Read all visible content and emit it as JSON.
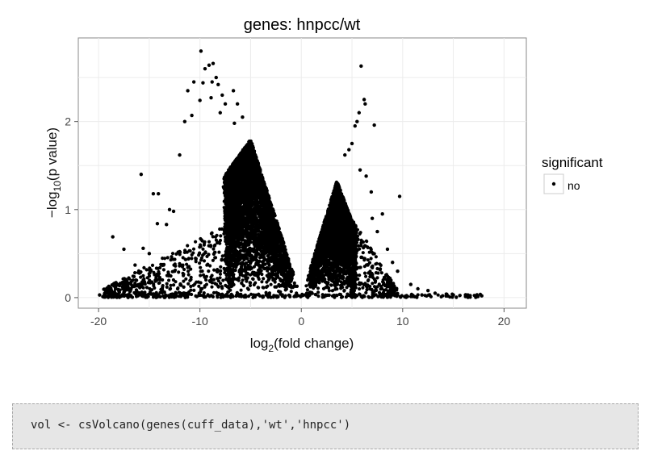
{
  "chart_data": {
    "type": "scatter",
    "title": "genes: hnpcc/wt",
    "xlabel": {
      "pre": "log",
      "sub": "2",
      "post": "(fold change)"
    },
    "ylabel": {
      "pre": "−log",
      "sub": "10",
      "post": "(p value)"
    },
    "xlim": [
      -22,
      22.2
    ],
    "ylim": [
      -0.12,
      2.95
    ],
    "xticks": [
      -20,
      -10,
      0,
      10,
      20
    ],
    "xtick_labels": [
      "-20",
      "-10",
      "0",
      "10",
      "20"
    ],
    "yticks": [
      0,
      1,
      2
    ],
    "ytick_labels": [
      "0",
      "1",
      "2"
    ],
    "grid": true,
    "point_color": "#000000",
    "legend": {
      "title": "significant",
      "entries": [
        "no"
      ],
      "position": "right"
    },
    "series": [
      {
        "points": [
          [
            -9.9,
            2.8
          ],
          [
            -8.7,
            2.66
          ],
          [
            -9.5,
            2.6
          ],
          [
            -9.1,
            2.64
          ],
          [
            -8.8,
            2.45
          ],
          [
            -8.4,
            2.5
          ],
          [
            -8.2,
            2.42
          ],
          [
            -10.6,
            2.45
          ],
          [
            -11.2,
            2.35
          ],
          [
            -9.7,
            2.44
          ],
          [
            -7.8,
            2.3
          ],
          [
            -6.7,
            2.35
          ],
          [
            -7.5,
            2.2
          ],
          [
            -8.0,
            2.1
          ],
          [
            -10.0,
            2.24
          ],
          [
            -11.5,
            2.0
          ],
          [
            -10.8,
            2.07
          ],
          [
            -8.9,
            2.27
          ],
          [
            -6.3,
            2.2
          ],
          [
            -5.8,
            2.05
          ],
          [
            -6.6,
            1.98
          ],
          [
            -12.0,
            1.62
          ],
          [
            -15.8,
            1.4
          ],
          [
            -14.6,
            1.18
          ],
          [
            -14.1,
            1.18
          ],
          [
            -13.0,
            1.0
          ],
          [
            -12.6,
            0.98
          ],
          [
            -13.3,
            0.83
          ],
          [
            -14.2,
            0.84
          ],
          [
            -18.6,
            0.69
          ],
          [
            -17.5,
            0.55
          ],
          [
            -15.6,
            0.56
          ],
          [
            -15.0,
            0.5
          ],
          [
            -16.4,
            0.37
          ],
          [
            -17.0,
            0.16
          ],
          [
            -19.3,
            0.08
          ],
          [
            -19.9,
            0.03
          ],
          [
            -18.2,
            0.02
          ],
          [
            -17.5,
            0.06
          ],
          [
            -16.0,
            0.05
          ],
          [
            -14.8,
            0.04
          ],
          [
            -13.5,
            0.06
          ],
          [
            -12.2,
            0.1
          ],
          [
            -11.6,
            0.12
          ],
          [
            5.9,
            2.63
          ],
          [
            6.2,
            2.25
          ],
          [
            6.3,
            2.2
          ],
          [
            5.7,
            2.1
          ],
          [
            5.5,
            2.0
          ],
          [
            5.3,
            1.95
          ],
          [
            7.2,
            1.96
          ],
          [
            5.0,
            1.75
          ],
          [
            4.7,
            1.68
          ],
          [
            4.3,
            1.62
          ],
          [
            9.7,
            1.15
          ],
          [
            8.0,
            0.95
          ],
          [
            7.0,
            0.9
          ],
          [
            7.5,
            0.75
          ],
          [
            8.5,
            0.55
          ],
          [
            9.0,
            0.4
          ],
          [
            9.5,
            0.3
          ],
          [
            10.8,
            0.15
          ],
          [
            11.5,
            0.1
          ],
          [
            12.5,
            0.08
          ],
          [
            13.2,
            0.05
          ],
          [
            14.3,
            0.04
          ],
          [
            15.0,
            0.03
          ],
          [
            16.2,
            0.03
          ],
          [
            17.3,
            0.02
          ],
          [
            17.8,
            0.02
          ],
          [
            11.9,
            0.03
          ],
          [
            6.4,
            1.38
          ],
          [
            5.8,
            1.45
          ],
          [
            6.9,
            1.2
          ],
          [
            3.4,
            1.15
          ],
          [
            2.8,
            0.95
          ]
        ]
      }
    ]
  },
  "code": {
    "line": "vol <- csVolcano(genes(cuff_data),'wt','hnpcc')"
  }
}
